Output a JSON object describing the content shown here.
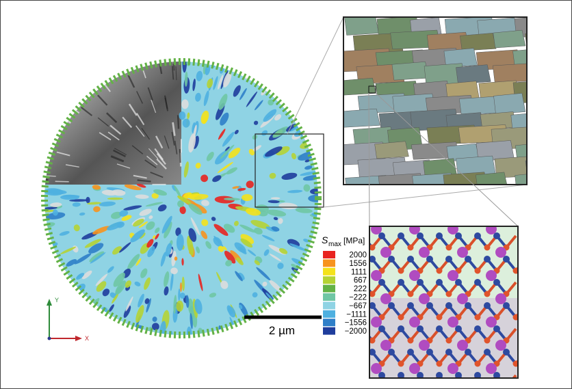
{
  "legend": {
    "symbol": "S",
    "subscript": "max",
    "unit": "[MPa]",
    "entries": [
      {
        "label": "2000",
        "color": "#e8231f"
      },
      {
        "label": "1556",
        "color": "#f7931e"
      },
      {
        "label": "1111",
        "color": "#f4e21b"
      },
      {
        "label": "667",
        "color": "#b5d334"
      },
      {
        "label": "222",
        "color": "#63b246"
      },
      {
        "label": "−222",
        "color": "#6fc6a4"
      },
      {
        "label": "−667",
        "color": "#8fd3e4"
      },
      {
        "label": "−1111",
        "color": "#4fb0e0"
      },
      {
        "label": "−1556",
        "color": "#2f7fc8"
      },
      {
        "label": "−2000",
        "color": "#1f3d9c"
      }
    ]
  },
  "scale_bar": {
    "label": "2 µm"
  },
  "axes": {
    "y": "Y",
    "x": "X"
  }
}
